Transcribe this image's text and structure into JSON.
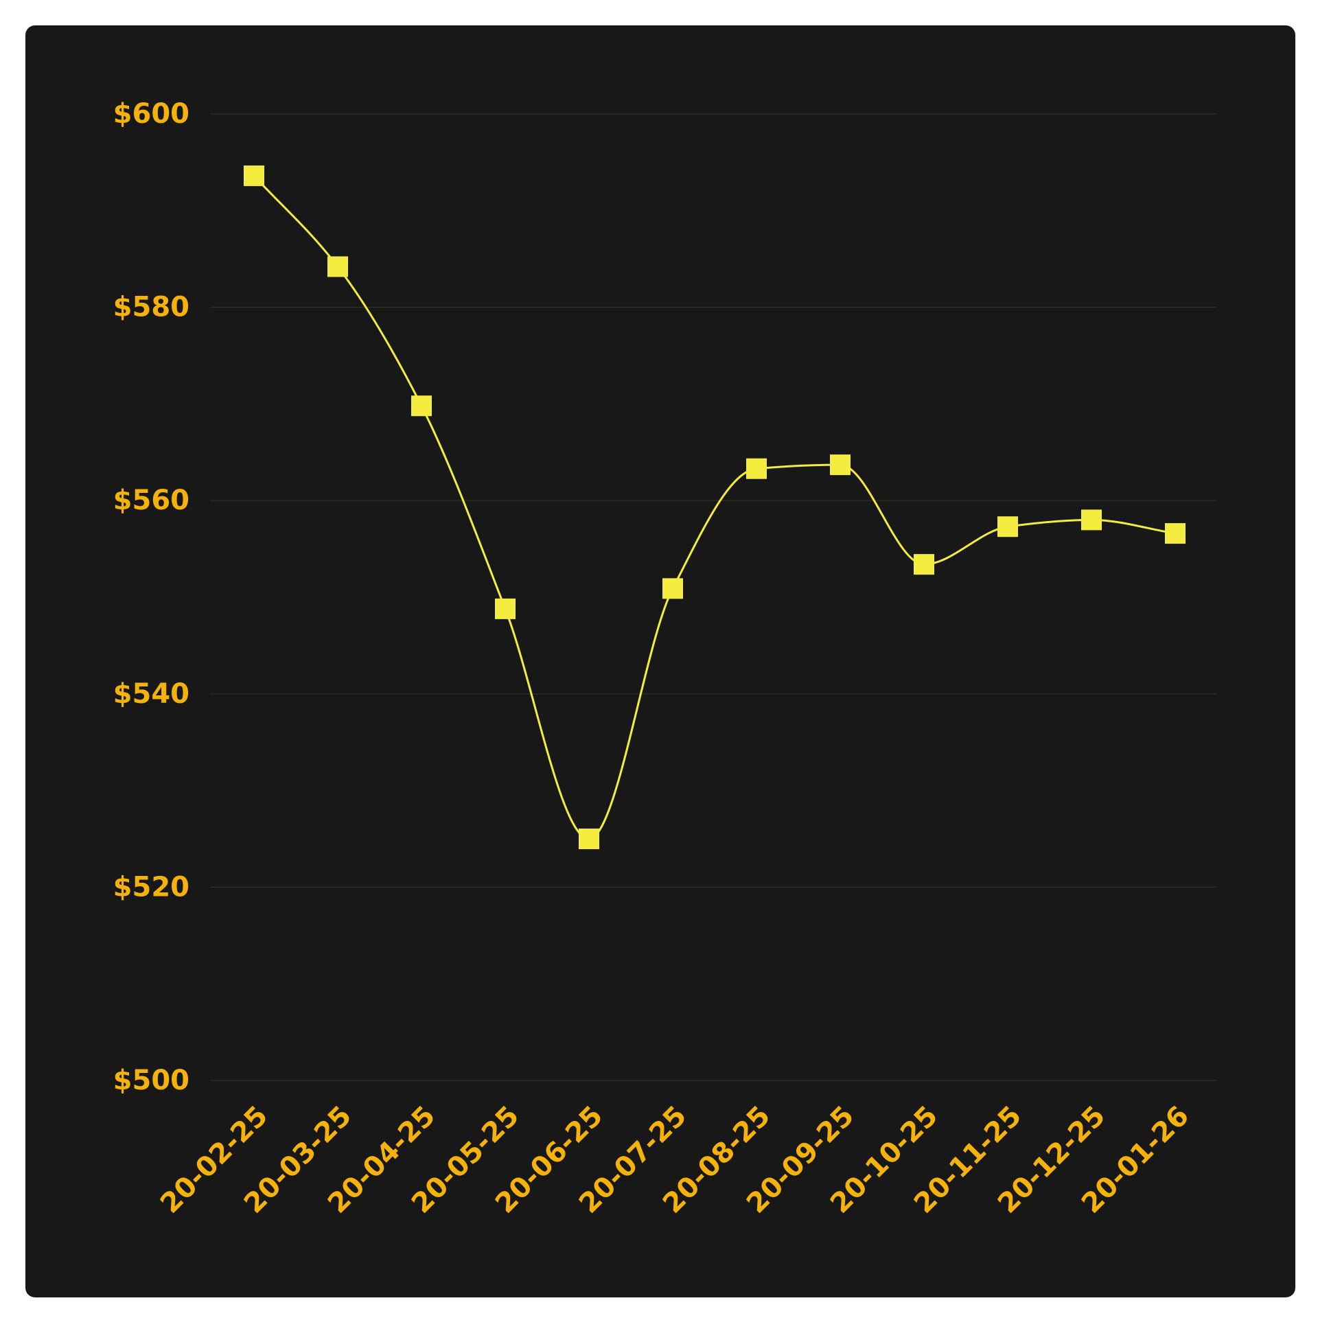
{
  "chart_data": {
    "type": "line",
    "x": [
      "20-02-25",
      "20-03-25",
      "20-04-25",
      "20-05-25",
      "20-06-25",
      "20-07-25",
      "20-08-25",
      "20-09-25",
      "20-10-25",
      "20-11-25",
      "20-12-25",
      "20-01-26"
    ],
    "series": [
      {
        "values": [
          593.6,
          584.2,
          569.8,
          548.8,
          525.0,
          550.9,
          563.3,
          563.7,
          553.4,
          557.3,
          558.0,
          556.6
        ],
        "marker": "square",
        "curve": "smooth"
      }
    ],
    "ylim": [
      500,
      600
    ],
    "yticks": [
      500,
      520,
      540,
      560,
      580,
      600
    ],
    "ytick_labels": [
      "$500",
      "$520",
      "$540",
      "$560",
      "$580",
      "$600"
    ],
    "grid": true,
    "legend": "none",
    "colors": {
      "background": "#181818",
      "line": "#f4ec3f",
      "marker": "#f4ec3f",
      "tick_label": "#f5b20a",
      "grid": "#33331e"
    }
  }
}
